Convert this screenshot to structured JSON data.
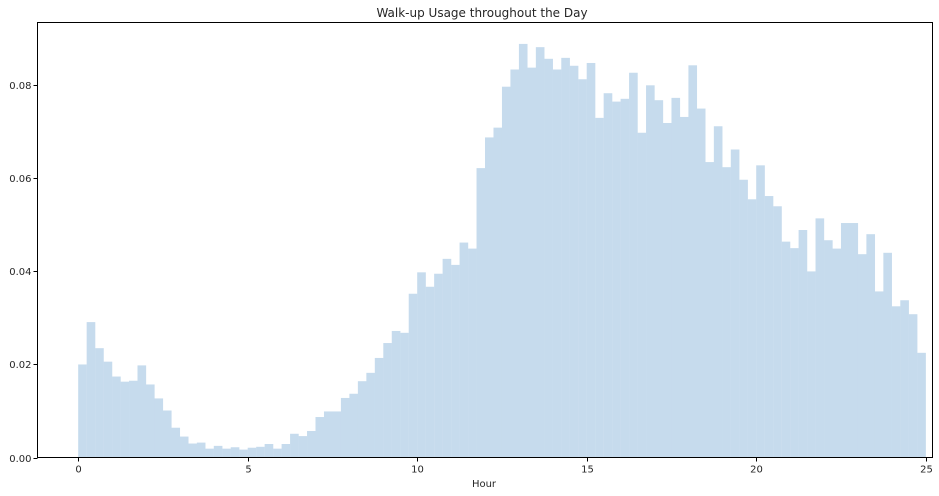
{
  "chart_data": {
    "type": "bar",
    "title": "Walk-up Usage throughout the Day",
    "xlabel": "Hour",
    "ylabel": "",
    "xlim": [
      -1.2,
      25.2
    ],
    "ylim": [
      0,
      0.0935
    ],
    "xticks": [
      0,
      5,
      10,
      15,
      20,
      25
    ],
    "yticks": [
      0.0,
      0.02,
      0.04,
      0.06,
      0.08
    ],
    "ytick_labels": [
      "0.00",
      "0.02",
      "0.04",
      "0.06",
      "0.08"
    ],
    "bin_start": 0,
    "bin_width": 0.25,
    "bar_color": "#c6dbed",
    "grid": false,
    "legend": false,
    "values": [
      0.02,
      0.0291,
      0.0235,
      0.0206,
      0.0174,
      0.0163,
      0.0165,
      0.0198,
      0.0157,
      0.0127,
      0.0101,
      0.0064,
      0.0045,
      0.003,
      0.0032,
      0.0019,
      0.0025,
      0.0019,
      0.0022,
      0.0017,
      0.0021,
      0.0023,
      0.0029,
      0.0019,
      0.0029,
      0.0051,
      0.0046,
      0.0057,
      0.0087,
      0.0099,
      0.0099,
      0.0128,
      0.0137,
      0.0164,
      0.0182,
      0.0214,
      0.0246,
      0.0272,
      0.0268,
      0.0352,
      0.0398,
      0.0367,
      0.0395,
      0.0427,
      0.0414,
      0.0462,
      0.0449,
      0.0622,
      0.0688,
      0.0709,
      0.0797,
      0.0834,
      0.0889,
      0.0838,
      0.0882,
      0.0857,
      0.0834,
      0.0859,
      0.0842,
      0.0813,
      0.0848,
      0.073,
      0.0783,
      0.0765,
      0.0771,
      0.0827,
      0.0698,
      0.08,
      0.0768,
      0.0719,
      0.0773,
      0.0732,
      0.0843,
      0.075,
      0.0635,
      0.0712,
      0.0624,
      0.0662,
      0.0597,
      0.0555,
      0.0628,
      0.0562,
      0.054,
      0.0464,
      0.045,
      0.0489,
      0.04,
      0.0514,
      0.0467,
      0.0449,
      0.0504,
      0.0504,
      0.0437,
      0.048,
      0.0357,
      0.044,
      0.0325,
      0.0338,
      0.0308,
      0.0225
    ]
  }
}
